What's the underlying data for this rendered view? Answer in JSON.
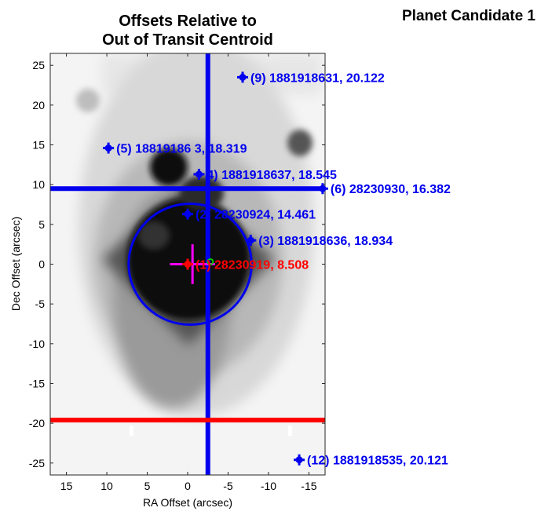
{
  "panel_title": "Planet Candidate 1",
  "chart_data": {
    "type": "scatter",
    "title_lines": [
      "Offsets Relative to",
      "Out of Transit Centroid"
    ],
    "xlabel": "RA Offset (arcsec)",
    "ylabel": "Dec Offset (arcsec)",
    "xlim": [
      17,
      -17
    ],
    "ylim": [
      -26.5,
      26.5
    ],
    "xticks": [
      15,
      10,
      5,
      0,
      -5,
      -10,
      -15
    ],
    "yticks": [
      25,
      20,
      15,
      10,
      5,
      0,
      -5,
      -10,
      -15,
      -20,
      -25
    ],
    "background": "grayscale sky image (darker = brighter source)",
    "stars": [
      {
        "label": "(9) 1881918631, 20.122",
        "x": -6.8,
        "y": 23.5,
        "color": "#0000ee"
      },
      {
        "label": "(5) 18819186 3, 18.319",
        "x": 9.8,
        "y": 14.6,
        "color": "#0000ee"
      },
      {
        "label": "4) 1881918637, 18.545",
        "x": -1.4,
        "y": 11.3,
        "color": "#0000ee"
      },
      {
        "label": "(6) 28230930, 16.382",
        "x": -16.7,
        "y": 9.5,
        "color": "#0000ee"
      },
      {
        "label": "(2) 28230924, 14.461",
        "x": 0.0,
        "y": 6.3,
        "color": "#0000ee"
      },
      {
        "label": "(3) 1881918636, 18.934",
        "x": -7.8,
        "y": 3.0,
        "color": "#0000ee"
      },
      {
        "label": "(12) 1881918535, 20.121",
        "x": -13.8,
        "y": -24.6,
        "color": "#0000ee"
      },
      {
        "label": "(1) 28230919, 8.508",
        "x": 0.0,
        "y": 0.0,
        "color": "#ff0000"
      }
    ],
    "lines": [
      {
        "orientation": "vertical",
        "value": -2.5,
        "color": "#0000ee"
      },
      {
        "orientation": "horizontal",
        "value": 9.5,
        "color": "#0000ee"
      },
      {
        "orientation": "horizontal",
        "value": -19.6,
        "color": "#ff0000"
      }
    ],
    "circle": {
      "cx": -0.3,
      "cy": 0.0,
      "r": 7.6,
      "color": "#0000ee"
    },
    "centroid_cross": {
      "x": -0.6,
      "y": 0.0,
      "dx": 2.8,
      "dy": 2.5,
      "color": "#ff00ff"
    },
    "green_marker": {
      "x": -2.8,
      "y": 0.3,
      "color": "#00cc00"
    }
  }
}
